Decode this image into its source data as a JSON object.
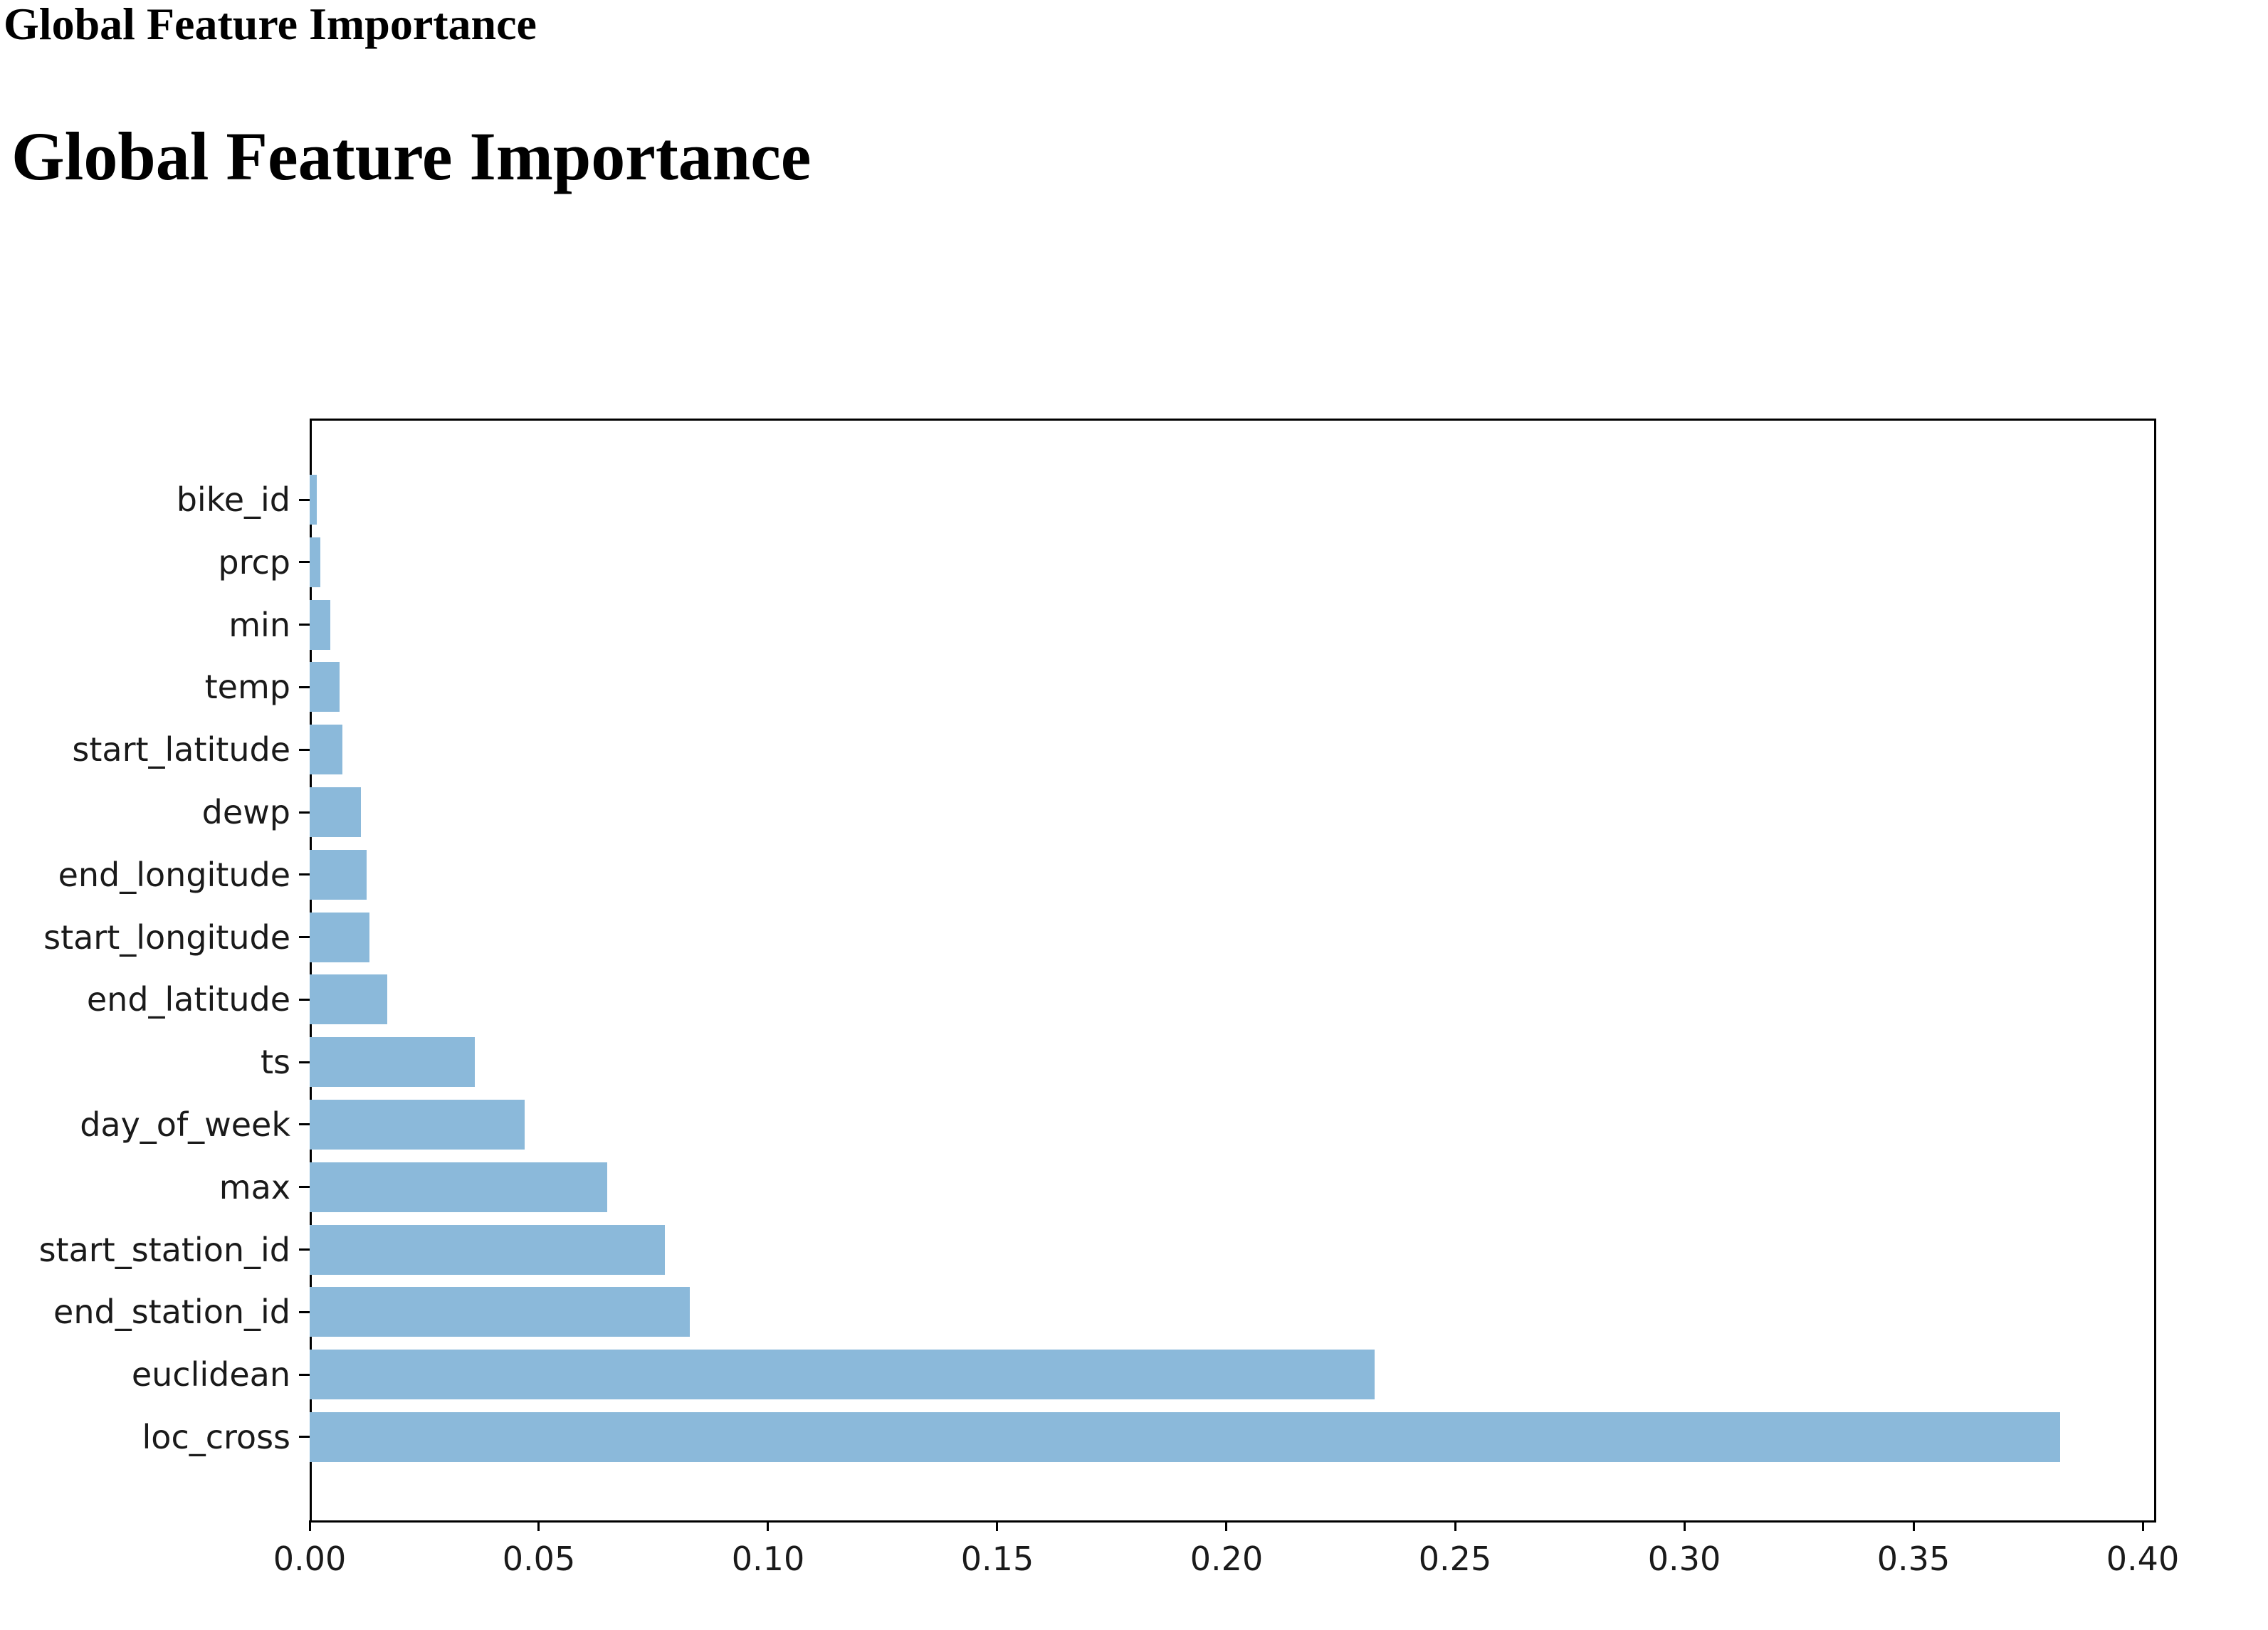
{
  "page": {
    "window_title": "Global Feature Importance",
    "heading": "Global Feature Importance"
  },
  "chart_data": {
    "type": "bar",
    "orientation": "horizontal",
    "title": "",
    "xlabel": "",
    "ylabel": "",
    "grid": false,
    "legend": null,
    "bar_color": "#8bb9da",
    "axis_color": "#000000",
    "tick_label_color": "#1a1a1a",
    "xlim": [
      0.0,
      0.402
    ],
    "xticks": [
      "0.00",
      "0.05",
      "0.10",
      "0.15",
      "0.20",
      "0.25",
      "0.30",
      "0.35",
      "0.40"
    ],
    "xtick_values": [
      0.0,
      0.05,
      0.1,
      0.15,
      0.2,
      0.25,
      0.3,
      0.35,
      0.4
    ],
    "categories": [
      "bike_id",
      "prcp",
      "min",
      "temp",
      "start_latitude",
      "dewp",
      "end_longitude",
      "start_longitude",
      "end_latitude",
      "ts",
      "day_of_week",
      "max",
      "start_station_id",
      "end_station_id",
      "euclidean",
      "loc_cross"
    ],
    "values": [
      0.0015,
      0.0024,
      0.0045,
      0.0066,
      0.0071,
      0.0112,
      0.0125,
      0.013,
      0.017,
      0.0361,
      0.0469,
      0.065,
      0.0775,
      0.083,
      0.2323,
      0.3819
    ]
  }
}
